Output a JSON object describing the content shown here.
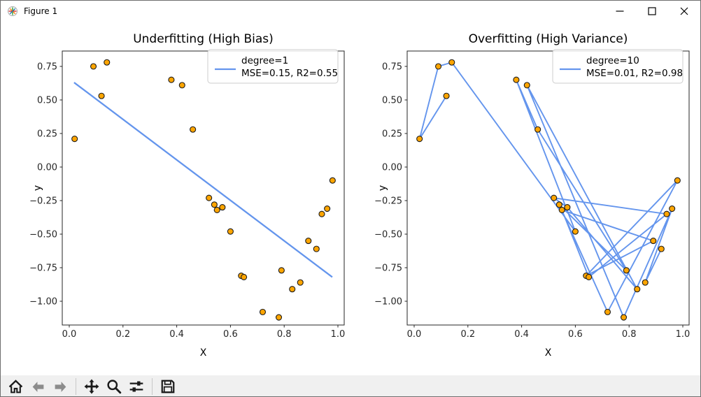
{
  "window": {
    "title": "Figure 1",
    "controls": [
      {
        "name": "minimize"
      },
      {
        "name": "maximize"
      },
      {
        "name": "close"
      }
    ]
  },
  "toolbar": {
    "buttons": [
      {
        "name": "home",
        "enabled": true
      },
      {
        "name": "back",
        "enabled": false
      },
      {
        "name": "forward",
        "enabled": false
      },
      {
        "name": "pan",
        "enabled": true
      },
      {
        "name": "zoom-to-rect",
        "enabled": true
      },
      {
        "name": "configure-subplots",
        "enabled": true
      },
      {
        "name": "save",
        "enabled": true
      }
    ]
  },
  "colors": {
    "line": "#6495ED",
    "marker_fill": "#FFA500",
    "marker_edge": "#1b1b1b",
    "axis": "#262626",
    "legend_edge": "#cccccc"
  },
  "chart_data": [
    {
      "type": "scatter",
      "title": "Underfitting (High Bias)",
      "xlabel": "X",
      "ylabel": "y",
      "xlim": [
        -0.026,
        1.0234
      ],
      "ylim": [
        -1.177,
        0.8646
      ],
      "xtick_values": [
        0.0,
        0.2,
        0.4,
        0.6,
        0.8,
        1.0
      ],
      "xtick_labels": [
        "0.0",
        "0.2",
        "0.4",
        "0.6",
        "0.8",
        "1.0"
      ],
      "ytick_values": [
        0.75,
        0.5,
        0.25,
        0.0,
        -0.25,
        -0.5,
        -0.75,
        -1.0
      ],
      "ytick_labels": [
        "0.75",
        "0.50",
        "0.25",
        "0.00",
        "−0.25",
        "−0.50",
        "−0.75",
        "−1.00"
      ],
      "legend": {
        "lines": [
          "degree=1",
          "MSE=0.15, R2=0.55"
        ]
      },
      "points": [
        [
          0.02,
          0.21
        ],
        [
          0.09,
          0.75
        ],
        [
          0.12,
          0.53
        ],
        [
          0.14,
          0.78
        ],
        [
          0.38,
          0.65
        ],
        [
          0.42,
          0.61
        ],
        [
          0.46,
          0.28
        ],
        [
          0.52,
          -0.23
        ],
        [
          0.54,
          -0.28
        ],
        [
          0.55,
          -0.32
        ],
        [
          0.57,
          -0.3
        ],
        [
          0.6,
          -0.48
        ],
        [
          0.64,
          -0.81
        ],
        [
          0.65,
          -0.82
        ],
        [
          0.72,
          -1.08
        ],
        [
          0.78,
          -1.12
        ],
        [
          0.79,
          -0.77
        ],
        [
          0.83,
          -0.91
        ],
        [
          0.86,
          -0.86
        ],
        [
          0.89,
          -0.55
        ],
        [
          0.92,
          -0.61
        ],
        [
          0.94,
          -0.35
        ],
        [
          0.96,
          -0.31
        ],
        [
          0.98,
          -0.1
        ]
      ],
      "fit_line": [
        [
          0.018,
          0.63
        ],
        [
          0.979,
          -0.82
        ]
      ]
    },
    {
      "type": "scatter",
      "title": "Overfitting (High Variance)",
      "xlabel": "X",
      "ylabel": "y",
      "xlim": [
        -0.026,
        1.0234
      ],
      "ylim": [
        -1.177,
        0.8646
      ],
      "xtick_values": [
        0.0,
        0.2,
        0.4,
        0.6,
        0.8,
        1.0
      ],
      "xtick_labels": [
        "0.0",
        "0.2",
        "0.4",
        "0.6",
        "0.8",
        "1.0"
      ],
      "ytick_values": [
        0.75,
        0.5,
        0.25,
        0.0,
        -0.25,
        -0.5,
        -0.75,
        -1.0
      ],
      "ytick_labels": [
        "0.75",
        "0.50",
        "0.25",
        "0.00",
        "−0.25",
        "−0.50",
        "−0.75",
        "−1.00"
      ],
      "legend": {
        "lines": [
          "degree=10",
          "MSE=0.01, R2=0.98"
        ]
      },
      "points": [
        [
          0.02,
          0.21
        ],
        [
          0.09,
          0.75
        ],
        [
          0.12,
          0.53
        ],
        [
          0.14,
          0.78
        ],
        [
          0.38,
          0.65
        ],
        [
          0.42,
          0.61
        ],
        [
          0.46,
          0.28
        ],
        [
          0.52,
          -0.23
        ],
        [
          0.54,
          -0.28
        ],
        [
          0.55,
          -0.32
        ],
        [
          0.57,
          -0.3
        ],
        [
          0.6,
          -0.48
        ],
        [
          0.64,
          -0.81
        ],
        [
          0.65,
          -0.82
        ],
        [
          0.72,
          -1.08
        ],
        [
          0.78,
          -1.12
        ],
        [
          0.79,
          -0.77
        ],
        [
          0.83,
          -0.91
        ],
        [
          0.86,
          -0.86
        ],
        [
          0.89,
          -0.55
        ],
        [
          0.92,
          -0.61
        ],
        [
          0.94,
          -0.35
        ],
        [
          0.96,
          -0.31
        ],
        [
          0.98,
          -0.1
        ]
      ],
      "path_order": [
        2,
        0,
        1,
        3,
        11,
        4,
        6,
        16,
        8,
        14,
        23,
        12,
        19,
        9,
        13,
        21,
        7,
        10,
        17,
        5,
        15,
        22,
        18,
        20
      ]
    }
  ]
}
